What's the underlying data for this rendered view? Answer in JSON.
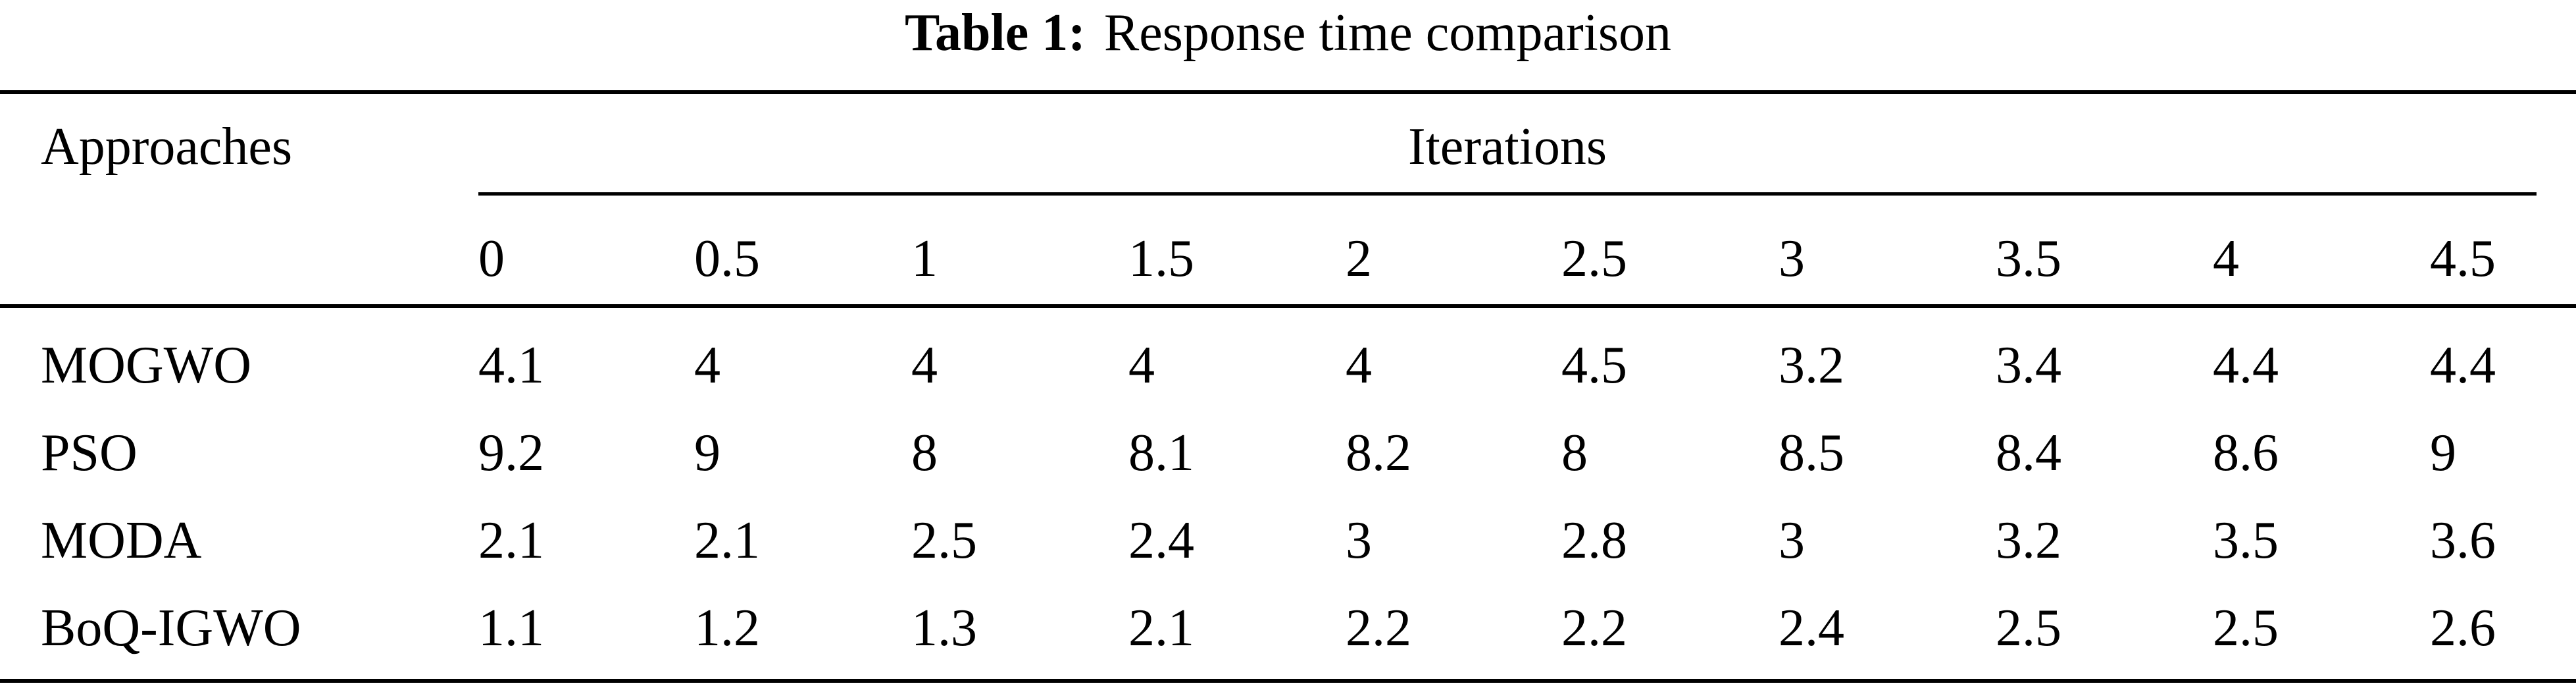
{
  "caption": {
    "label": "Table 1:",
    "text": "Response time comparison"
  },
  "table": {
    "stub_header": "Approaches",
    "group_header": "Iterations",
    "columns": [
      "0",
      "0.5",
      "1",
      "1.5",
      "2",
      "2.5",
      "3",
      "3.5",
      "4",
      "4.5"
    ],
    "rows": [
      {
        "name": "MOGWO",
        "values": [
          "4.1",
          "4",
          "4",
          "4",
          "4",
          "4.5",
          "3.2",
          "3.4",
          "4.4",
          "4.4"
        ]
      },
      {
        "name": "PSO",
        "values": [
          "9.2",
          "9",
          "8",
          "8.1",
          "8.2",
          "8",
          "8.5",
          "8.4",
          "8.6",
          "9"
        ]
      },
      {
        "name": "MODA",
        "values": [
          "2.1",
          "2.1",
          "2.5",
          "2.4",
          "3",
          "2.8",
          "3",
          "3.2",
          "3.5",
          "3.6"
        ]
      },
      {
        "name": "BoQ-IGWO",
        "values": [
          "1.1",
          "1.2",
          "1.3",
          "2.1",
          "2.2",
          "2.2",
          "2.4",
          "2.5",
          "2.5",
          "2.6"
        ]
      }
    ]
  }
}
